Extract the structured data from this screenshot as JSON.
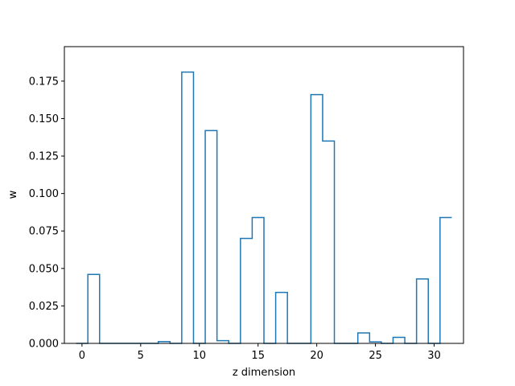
{
  "chart_data": {
    "type": "bar",
    "style": "step-histogram",
    "title": "",
    "xlabel": "z dimension",
    "ylabel": "w",
    "xlim": [
      -1.5,
      32.5
    ],
    "ylim": [
      0,
      0.198
    ],
    "x_ticks": [
      0,
      5,
      10,
      15,
      20,
      25,
      30
    ],
    "y_ticks": [
      0.0,
      0.025,
      0.05,
      0.075,
      0.1,
      0.125,
      0.15,
      0.175
    ],
    "y_tick_labels": [
      "0.000",
      "0.025",
      "0.050",
      "0.075",
      "0.100",
      "0.125",
      "0.150",
      "0.175"
    ],
    "x": [
      0,
      1,
      2,
      3,
      4,
      5,
      6,
      7,
      8,
      9,
      10,
      11,
      12,
      13,
      14,
      15,
      16,
      17,
      18,
      19,
      20,
      21,
      22,
      23,
      24,
      25,
      26,
      27,
      28,
      29,
      30,
      31
    ],
    "values": [
      0.0,
      0.046,
      0.0,
      0.0,
      0.0,
      0.0,
      0.0,
      0.0012,
      0.0,
      0.181,
      0.0,
      0.142,
      0.0018,
      0.0,
      0.07,
      0.084,
      0.0,
      0.034,
      0.0,
      0.0,
      0.166,
      0.135,
      0.0,
      0.0,
      0.007,
      0.001,
      0.0,
      0.004,
      0.0,
      0.043,
      0.0,
      0.084
    ],
    "color": "#1f77b4",
    "grid": false
  }
}
